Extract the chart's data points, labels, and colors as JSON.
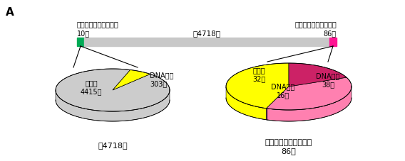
{
  "title_label": "A",
  "bar_label_center": "全4718株",
  "bar_label_left": "核分裂前の芽が小さい\n10株",
  "bar_label_right": "核分裂前の芽が大きい\n86株",
  "bar_color_main": "#c8c8c8",
  "bar_color_left": "#00aa55",
  "bar_color_right": "#ff1493",
  "left_pie_label_bottom": "全4718株",
  "right_pie_label_bottom": "核分裂前の芽が大きい\n86株",
  "left_pie": {
    "slices": [
      4415,
      303
    ],
    "colors": [
      "#cccccc",
      "#ffff00"
    ],
    "label0": "その他\n4415株",
    "label1": "DNA代謝\n303株",
    "startangle": 72
  },
  "right_pie": {
    "slices": [
      38,
      32,
      16
    ],
    "colors": [
      "#ffff00",
      "#ff80b0",
      "#cc2266"
    ],
    "label0": "DNA代謝\n38株",
    "label1": "その他\n32株",
    "label2": "DNA関連\n16株",
    "startangle": 90
  }
}
